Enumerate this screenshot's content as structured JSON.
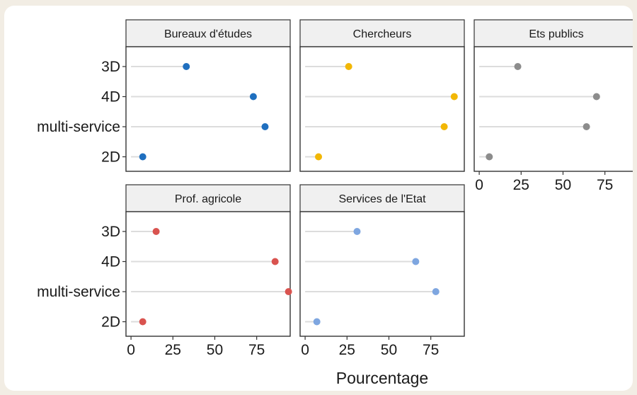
{
  "chart_data": {
    "type": "lollipop",
    "xlabel": "Pourcentage",
    "ylabel": "",
    "xlim": [
      -3,
      95
    ],
    "x_ticks": [
      0,
      25,
      50,
      75
    ],
    "categories": [
      "3D",
      "4D",
      "multi-service",
      "2D"
    ],
    "grid": false,
    "panels": [
      {
        "name": "Bureaux d'études",
        "color": "#1f6fbf",
        "values": [
          33,
          73,
          80,
          7
        ]
      },
      {
        "name": "Chercheurs",
        "color": "#f2b705",
        "values": [
          26,
          89,
          83,
          8
        ]
      },
      {
        "name": "Ets publics",
        "color": "#8c8c8c",
        "values": [
          23,
          70,
          64,
          6
        ]
      },
      {
        "name": "Prof. agricole",
        "color": "#d9534f",
        "values": [
          15,
          86,
          94,
          7
        ]
      },
      {
        "name": "Services de l'Etat",
        "color": "#7ea6e0",
        "values": [
          31,
          66,
          78,
          7
        ]
      }
    ]
  }
}
